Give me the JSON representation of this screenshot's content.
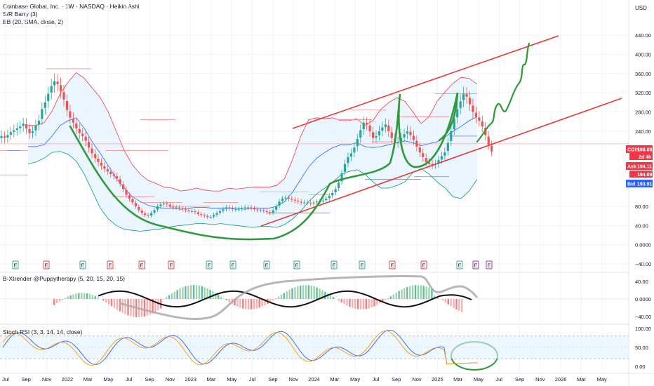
{
  "header": {
    "title": "Coinbase Global, Inc. · 1W · NASDAQ · Heikin Ashi",
    "indicator_1": "S/R Barry (3)",
    "indicator_2": "BB (20, SMA, close, 2)"
  },
  "currency_label": "USD",
  "price_tags": {
    "symbol": "COIN",
    "last": "198.08",
    "countdown": "2d 4h",
    "ask_label": "Ask",
    "ask": "194.11",
    "mid": "194.09",
    "bid_label": "Bid",
    "bid": "193.91"
  },
  "colors": {
    "bull": "#26a69a",
    "bear": "#ef5350",
    "trend_drawing": "#2e9a3c",
    "channel": "#e53935",
    "bb_fill": "#e3f2fd",
    "bb_basis": "#2962ff",
    "bb_upper": "#f23645",
    "bb_lower": "#089981",
    "stoch_k": "#2962ff",
    "stoch_d": "#ff9800",
    "sr_line_red": "#f28b8b",
    "sr_line_blue": "#5b7cfa",
    "price_tag_red": "#f23645",
    "price_tag_blue": "#2962ff"
  },
  "chart_data": [
    {
      "type": "candlestick",
      "title": "Coinbase Global, Inc. · 1W · NASDAQ · Heikin Ashi",
      "y_axis_label": "USD",
      "y_ticks": [
        "440.00",
        "400.00",
        "360.00",
        "320.00",
        "280.00",
        "240.00",
        "80.00",
        "40.00",
        "0.0000",
        "−40.00"
      ],
      "y_tick_values": [
        440,
        400,
        360,
        320,
        280,
        240,
        80,
        40,
        0,
        -40
      ],
      "ylim": [
        -50,
        480
      ],
      "x_ticks": [
        "Jul",
        "Sep",
        "Nov",
        "2022",
        "Mar",
        "May",
        "Jul",
        "Sep",
        "Nov",
        "2023",
        "Mar",
        "May",
        "Jul",
        "Sep",
        "Nov",
        "2024",
        "Mar",
        "May",
        "Jul",
        "Sep",
        "Nov",
        "2025",
        "Mar",
        "May",
        "Jul",
        "Sep",
        "Nov",
        "2026",
        "Mar",
        "May"
      ],
      "bars": {
        "start": "2021-07-05",
        "interval_weeks": 1,
        "close": [
          230,
          226,
          232,
          238,
          242,
          246,
          250,
          256,
          246,
          236,
          240,
          252,
          262,
          286,
          300,
          318,
          334,
          344,
          338,
          324,
          306,
          284,
          268,
          258,
          246,
          236,
          230,
          220,
          206,
          194,
          184,
          176,
          168,
          162,
          156,
          150,
          146,
          140,
          128,
          116,
          104,
          96,
          88,
          80,
          72,
          66,
          62,
          60,
          66,
          72,
          80,
          84,
          86,
          84,
          80,
          78,
          78,
          76,
          74,
          72,
          70,
          70,
          68,
          64,
          62,
          60,
          58,
          58,
          62,
          66,
          70,
          74,
          78,
          76,
          74,
          74,
          74,
          76,
          78,
          78,
          76,
          74,
          72,
          72,
          70,
          68,
          66,
          72,
          80,
          90,
          96,
          98,
          96,
          94,
          92,
          90,
          88,
          88,
          88,
          86,
          88,
          90,
          90,
          92,
          96,
          102,
          108,
          116,
          130,
          152,
          172,
          186,
          194,
          206,
          224,
          242,
          258,
          254,
          240,
          226,
          230,
          240,
          248,
          254,
          240,
          226,
          216,
          218,
          226,
          234,
          240,
          232,
          222,
          208,
          196,
          186,
          176,
          172,
          170,
          172,
          180,
          188,
          196,
          216,
          240,
          266,
          286,
          302,
          318,
          312,
          296,
          280,
          270,
          262,
          250,
          232,
          212,
          198
        ],
        "up_color": "#26a69a",
        "down_color": "#ef5350"
      },
      "bollinger": {
        "upper_anchor_values": [
          252,
          252,
          258,
          282,
          318,
          342,
          362,
          350,
          330,
          310,
          280,
          240,
          200,
          170,
          150,
          135,
          128,
          120,
          118,
          112,
          114,
          118,
          114,
          112,
          112,
          118,
          116,
          118,
          120,
          120,
          120,
          124,
          140,
          182,
          230,
          264,
          268,
          266,
          268,
          262,
          262,
          266,
          252,
          262,
          286,
          300,
          310,
          302,
          280,
          256,
          270,
          302,
          322,
          340,
          352,
          350,
          338
        ],
        "lower_anchor_values": [
          172,
          176,
          184,
          196,
          198,
          192,
          178,
          150,
          112,
          76,
          54,
          40,
          32,
          30,
          28,
          30,
          32,
          34,
          38,
          40,
          42,
          44,
          44,
          42,
          44,
          42,
          40,
          38,
          36,
          38,
          38,
          36,
          42,
          54,
          70,
          90,
          106,
          118,
          132,
          148,
          156,
          160,
          150,
          132,
          118,
          118,
          124,
          132,
          154,
          162,
          150,
          132,
          118,
          100,
          96,
          112,
          138
        ],
        "basis_anchor_values": [
          208,
          208,
          212,
          230,
          252,
          262,
          268,
          246,
          218,
          194,
          168,
          140,
          118,
          100,
          90,
          82,
          78,
          76,
          76,
          74,
          76,
          78,
          78,
          76,
          76,
          76,
          76,
          74,
          76,
          76,
          76,
          80,
          90,
          110,
          138,
          166,
          184,
          196,
          206,
          212,
          212,
          216,
          208,
          206,
          208,
          212,
          216,
          220,
          216,
          210,
          214,
          218,
          228,
          240,
          250,
          262,
          270
        ]
      },
      "annotations": {
        "rising_channel_upper": [
          [
            "2023-10",
            215
          ],
          [
            "2025-10",
            430
          ]
        ],
        "rising_channel_lower": [
          [
            "2023-07",
            25
          ],
          [
            "2026-06",
            305
          ]
        ],
        "projection_path": "green arrow-like path from current price up to ~420"
      },
      "earnings_markers": [
        "E",
        "E",
        "E",
        "E",
        "E",
        "E",
        "E",
        "E",
        "E",
        "E",
        "E",
        "E",
        "E",
        "E",
        "E",
        "E",
        "E"
      ],
      "earnings_marker_colors": [
        "green",
        "red",
        "green",
        "red",
        "red",
        "red",
        "green",
        "green",
        "green",
        "green",
        "green",
        "green",
        "red",
        "red",
        "green",
        "purple",
        "purple"
      ]
    },
    {
      "type": "histogram",
      "title": "B-Xtrender @Puppytherapy (5, 20, 15, 20, 15)",
      "y_ticks": [
        "40.00",
        "0.0000",
        "−40.00"
      ],
      "y_tick_values": [
        40,
        0,
        -40
      ],
      "ylim": [
        -52,
        52
      ]
    },
    {
      "type": "line",
      "title": "Stoch RSI (3, 3, 14, 14, close)",
      "y_ticks": [
        "100.00",
        "50.00",
        "0.00"
      ],
      "y_tick_values": [
        100,
        50,
        0
      ],
      "ylim": [
        -8,
        108
      ],
      "band_upper": 80,
      "band_lower": 20
    }
  ]
}
